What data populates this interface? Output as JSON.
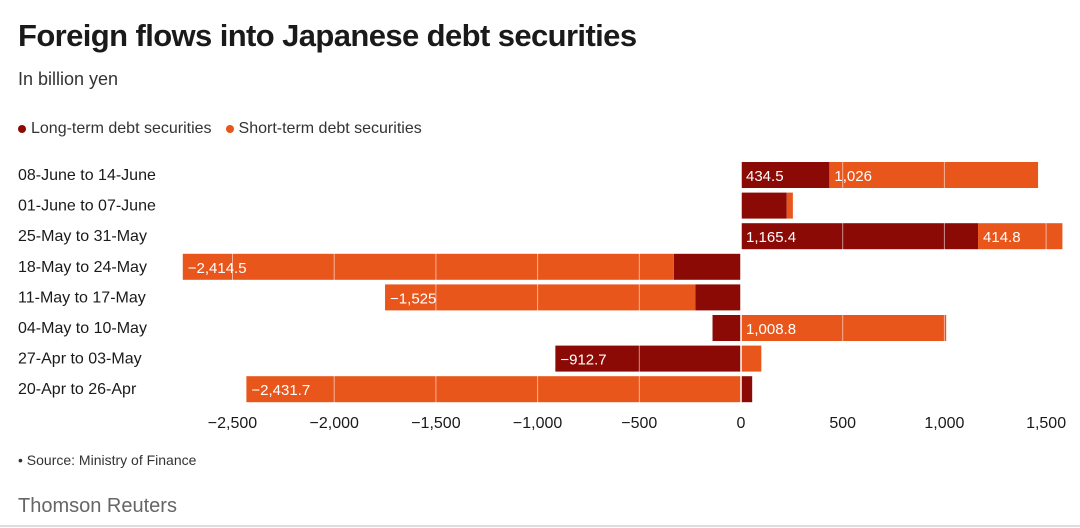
{
  "header": {
    "title": "Foreign flows into Japanese debt securities",
    "subtitle": "In billion yen"
  },
  "footer": {
    "source": "• Source: Ministry of Finance",
    "brand": "Thomson Reuters"
  },
  "colors": {
    "long_term": "#8b0a05",
    "short_term": "#e8561b",
    "text": "#1a1a1a",
    "grid_line": "#ffffff"
  },
  "chart_data": {
    "type": "bar",
    "orientation": "horizontal",
    "stacked": true,
    "unit": "billion yen",
    "categories": [
      "08-June to 14-June",
      "01-June to 07-June",
      "25-May to 31-May",
      "18-May to 24-May",
      "11-May to 17-May",
      "04-May to 10-May",
      "27-Apr to 03-May",
      "20-Apr to 26-Apr"
    ],
    "series": [
      {
        "name": "Long-term debt securities",
        "color": "#8b0a05",
        "values": [
          434.5,
          225,
          1165.4,
          -330,
          -225,
          -140,
          -912.7,
          55
        ],
        "labels": [
          "434.5",
          "",
          "1,165.4",
          "",
          "",
          "",
          "−912.7",
          ""
        ]
      },
      {
        "name": "Short-term debt securities",
        "color": "#e8561b",
        "values": [
          1026,
          30,
          414.8,
          -2414.5,
          -1525,
          1008.8,
          100,
          -2431.7
        ],
        "labels": [
          "1,026",
          "",
          "414.8",
          "−2,414.5",
          "−1,525",
          "1,008.8",
          "",
          "−2,431.7"
        ]
      }
    ],
    "xlim": [
      -2750,
      1620
    ],
    "xticks": [
      -2500,
      -2000,
      -1500,
      -1000,
      -500,
      0,
      500,
      1000,
      1500
    ],
    "xtick_labels": [
      "−2,500",
      "−2,000",
      "−1,500",
      "−1,000",
      "−500",
      "0",
      "500",
      "1,000",
      "1,500"
    ],
    "grid": true,
    "legend_position": "top-left"
  }
}
